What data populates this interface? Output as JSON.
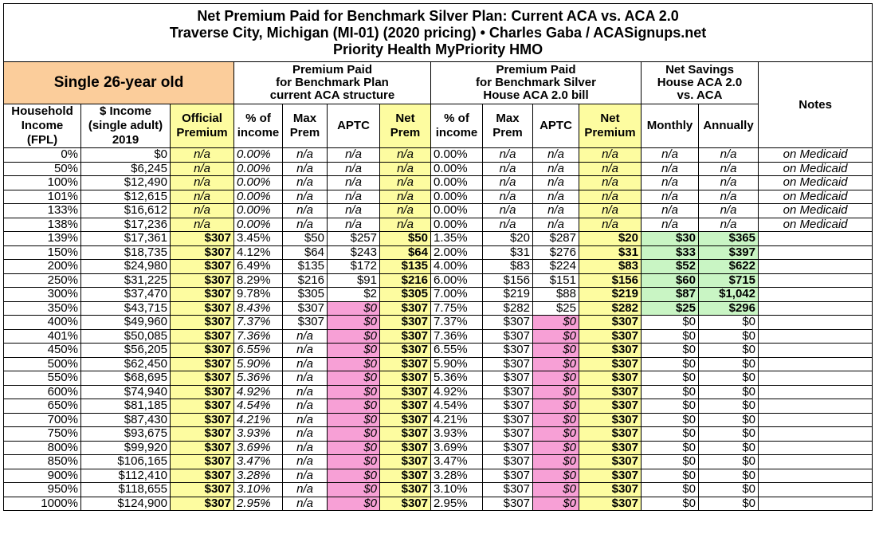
{
  "title": [
    "Net Premium Paid for Benchmark Silver Plan: Current ACA vs. ACA 2.0",
    "Traverse City, Michigan (MI-01) (2020 pricing) • Charles Gaba / ACASignups.net",
    "Priority Health MyPriority HMO"
  ],
  "group_headers": [
    "Single 26-year old",
    "Premium Paid\nfor Benchmark Plan\ncurrent ACA structure",
    "Premium Paid\nfor Benchmark Silver\nHouse ACA 2.0 bill",
    "Net Savings\nHouse ACA 2.0\nvs. ACA",
    "Notes"
  ],
  "columns": [
    "Household\nIncome\n(FPL)",
    "$ Income\n(single adult)\n2019",
    "Official\nPremium",
    "% of\nincome",
    "Max\nPrem",
    "APTC",
    "Net\nPrem",
    "% of\nincome",
    "Max\nPrem",
    "APTC",
    "Net\nPremium",
    "Monthly",
    "Annually"
  ],
  "rows": [
    [
      "0%",
      "$0",
      "n/a",
      "0.00%",
      "n/a",
      "n/a",
      "n/a",
      "0.00%",
      "n/a",
      "n/a",
      "n/a",
      "n/a",
      "n/a",
      "on Medicaid"
    ],
    [
      "50%",
      "$6,245",
      "n/a",
      "0.00%",
      "n/a",
      "n/a",
      "n/a",
      "0.00%",
      "n/a",
      "n/a",
      "n/a",
      "n/a",
      "n/a",
      "on Medicaid"
    ],
    [
      "100%",
      "$12,490",
      "n/a",
      "0.00%",
      "n/a",
      "n/a",
      "n/a",
      "0.00%",
      "n/a",
      "n/a",
      "n/a",
      "n/a",
      "n/a",
      "on Medicaid"
    ],
    [
      "101%",
      "$12,615",
      "n/a",
      "0.00%",
      "n/a",
      "n/a",
      "n/a",
      "0.00%",
      "n/a",
      "n/a",
      "n/a",
      "n/a",
      "n/a",
      "on Medicaid"
    ],
    [
      "133%",
      "$16,612",
      "n/a",
      "0.00%",
      "n/a",
      "n/a",
      "n/a",
      "0.00%",
      "n/a",
      "n/a",
      "n/a",
      "n/a",
      "n/a",
      "on Medicaid"
    ],
    [
      "138%",
      "$17,236",
      "n/a",
      "0.00%",
      "n/a",
      "n/a",
      "n/a",
      "0.00%",
      "n/a",
      "n/a",
      "n/a",
      "n/a",
      "n/a",
      "on Medicaid"
    ],
    [
      "139%",
      "$17,361",
      "$307",
      "3.45%",
      "$50",
      "$257",
      "$50",
      "1.35%",
      "$20",
      "$287",
      "$20",
      "$30",
      "$365"
    ],
    [
      "150%",
      "$18,735",
      "$307",
      "4.12%",
      "$64",
      "$243",
      "$64",
      "2.00%",
      "$31",
      "$276",
      "$31",
      "$33",
      "$397"
    ],
    [
      "200%",
      "$24,980",
      "$307",
      "6.49%",
      "$135",
      "$172",
      "$135",
      "4.00%",
      "$83",
      "$224",
      "$83",
      "$52",
      "$622"
    ],
    [
      "250%",
      "$31,225",
      "$307",
      "8.29%",
      "$216",
      "$91",
      "$216",
      "6.00%",
      "$156",
      "$151",
      "$156",
      "$60",
      "$715"
    ],
    [
      "300%",
      "$37,470",
      "$307",
      "9.78%",
      "$305",
      "$2",
      "$305",
      "7.00%",
      "$219",
      "$88",
      "$219",
      "$87",
      "$1,042"
    ],
    [
      "350%",
      "$43,715",
      "$307",
      "8.43%",
      "$307",
      "$0",
      "$307",
      "7.75%",
      "$282",
      "$25",
      "$282",
      "$25",
      "$296"
    ],
    [
      "400%",
      "$49,960",
      "$307",
      "7.37%",
      "$307",
      "$0",
      "$307",
      "7.37%",
      "$307",
      "$0",
      "$307",
      "$0",
      "$0"
    ],
    [
      "401%",
      "$50,085",
      "$307",
      "7.36%",
      "n/a",
      "$0",
      "$307",
      "7.36%",
      "$307",
      "$0",
      "$307",
      "$0",
      "$0"
    ],
    [
      "450%",
      "$56,205",
      "$307",
      "6.55%",
      "n/a",
      "$0",
      "$307",
      "6.55%",
      "$307",
      "$0",
      "$307",
      "$0",
      "$0"
    ],
    [
      "500%",
      "$62,450",
      "$307",
      "5.90%",
      "n/a",
      "$0",
      "$307",
      "5.90%",
      "$307",
      "$0",
      "$307",
      "$0",
      "$0"
    ],
    [
      "550%",
      "$68,695",
      "$307",
      "5.36%",
      "n/a",
      "$0",
      "$307",
      "5.36%",
      "$307",
      "$0",
      "$307",
      "$0",
      "$0"
    ],
    [
      "600%",
      "$74,940",
      "$307",
      "4.92%",
      "n/a",
      "$0",
      "$307",
      "4.92%",
      "$307",
      "$0",
      "$307",
      "$0",
      "$0"
    ],
    [
      "650%",
      "$81,185",
      "$307",
      "4.54%",
      "n/a",
      "$0",
      "$307",
      "4.54%",
      "$307",
      "$0",
      "$307",
      "$0",
      "$0"
    ],
    [
      "700%",
      "$87,430",
      "$307",
      "4.21%",
      "n/a",
      "$0",
      "$307",
      "4.21%",
      "$307",
      "$0",
      "$307",
      "$0",
      "$0"
    ],
    [
      "750%",
      "$93,675",
      "$307",
      "3.93%",
      "n/a",
      "$0",
      "$307",
      "3.93%",
      "$307",
      "$0",
      "$307",
      "$0",
      "$0"
    ],
    [
      "800%",
      "$99,920",
      "$307",
      "3.69%",
      "n/a",
      "$0",
      "$307",
      "3.69%",
      "$307",
      "$0",
      "$307",
      "$0",
      "$0"
    ],
    [
      "850%",
      "$106,165",
      "$307",
      "3.47%",
      "n/a",
      "$0",
      "$307",
      "3.47%",
      "$307",
      "$0",
      "$307",
      "$0",
      "$0"
    ],
    [
      "900%",
      "$112,410",
      "$307",
      "3.28%",
      "n/a",
      "$0",
      "$307",
      "3.28%",
      "$307",
      "$0",
      "$307",
      "$0",
      "$0"
    ],
    [
      "950%",
      "$118,655",
      "$307",
      "3.10%",
      "n/a",
      "$0",
      "$307",
      "3.10%",
      "$307",
      "$0",
      "$307",
      "$0",
      "$0"
    ],
    [
      "1000%",
      "$124,900",
      "$307",
      "2.95%",
      "n/a",
      "$0",
      "$307",
      "2.95%",
      "$307",
      "$0",
      "$307",
      "$0",
      "$0"
    ]
  ]
}
